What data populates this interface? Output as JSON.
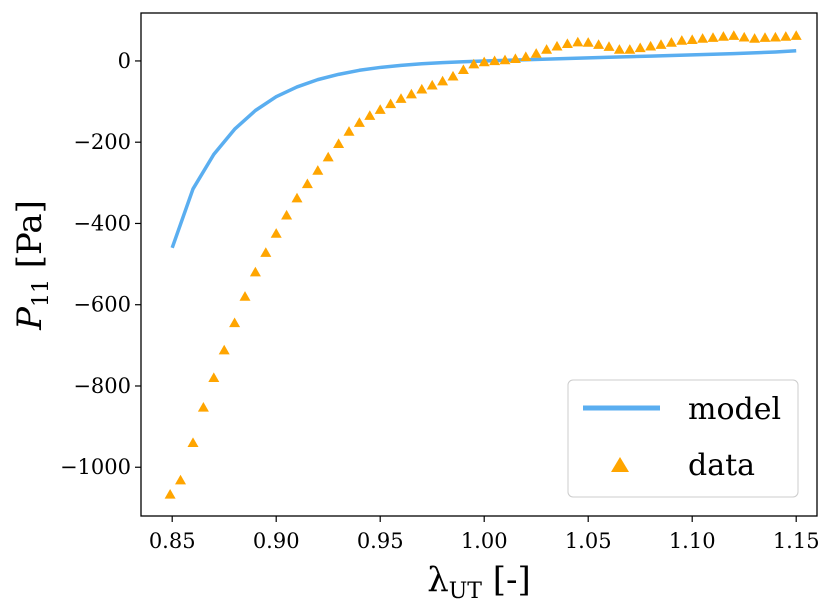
{
  "chart_data": {
    "type": "line",
    "xlabel": {
      "base": "λ",
      "sub": "UT",
      "suffix": " [-]"
    },
    "ylabel": {
      "base": "P",
      "sub": "11",
      "suffix": " [Pa]"
    },
    "xlim": [
      0.835,
      1.16
    ],
    "ylim": [
      -1120,
      118
    ],
    "x_ticks": [
      0.85,
      0.9,
      0.95,
      1.0,
      1.05,
      1.1,
      1.15
    ],
    "x_tick_labels": [
      "0.85",
      "0.90",
      "0.95",
      "1.00",
      "1.05",
      "1.10",
      "1.15"
    ],
    "y_ticks": [
      0,
      -200,
      -400,
      -600,
      -800,
      -1000
    ],
    "y_tick_labels": [
      "0",
      "−200",
      "−400",
      "−600",
      "−800",
      "−1000"
    ],
    "grid": false,
    "legend_position": "bottom-right",
    "series": [
      {
        "name": "model",
        "kind": "line",
        "color": "#5aaef0",
        "x": [
          0.85,
          0.86,
          0.87,
          0.88,
          0.89,
          0.9,
          0.91,
          0.92,
          0.93,
          0.94,
          0.95,
          0.96,
          0.97,
          0.98,
          0.99,
          1.0,
          1.02,
          1.04,
          1.06,
          1.08,
          1.1,
          1.12,
          1.14,
          1.15
        ],
        "y": [
          -460,
          -315,
          -230,
          -168,
          -122,
          -88,
          -64,
          -46,
          -33,
          -23,
          -16,
          -11,
          -7,
          -4,
          -2,
          0,
          3,
          6,
          9,
          12,
          15,
          18,
          22,
          25
        ]
      },
      {
        "name": "data",
        "kind": "scatter",
        "marker": "triangle",
        "color": "#ffa500",
        "x": [
          0.849,
          0.854,
          0.86,
          0.865,
          0.87,
          0.875,
          0.88,
          0.885,
          0.89,
          0.895,
          0.9,
          0.905,
          0.91,
          0.915,
          0.92,
          0.925,
          0.93,
          0.935,
          0.94,
          0.945,
          0.95,
          0.955,
          0.96,
          0.965,
          0.97,
          0.975,
          0.98,
          0.985,
          0.99,
          0.995,
          1.0,
          1.005,
          1.01,
          1.015,
          1.02,
          1.025,
          1.03,
          1.035,
          1.04,
          1.045,
          1.05,
          1.055,
          1.06,
          1.065,
          1.07,
          1.075,
          1.08,
          1.085,
          1.09,
          1.095,
          1.1,
          1.105,
          1.11,
          1.115,
          1.12,
          1.125,
          1.13,
          1.135,
          1.14,
          1.145,
          1.15
        ],
        "y": [
          -1067,
          -1032,
          -940,
          -853,
          -780,
          -712,
          -645,
          -580,
          -520,
          -472,
          -425,
          -380,
          -338,
          -303,
          -270,
          -237,
          -204,
          -174,
          -152,
          -135,
          -120,
          -106,
          -93,
          -82,
          -70,
          -60,
          -50,
          -38,
          -22,
          -8,
          -3,
          0,
          2,
          5,
          10,
          18,
          28,
          36,
          42,
          46,
          45,
          40,
          35,
          28,
          28,
          32,
          36,
          40,
          45,
          50,
          52,
          55,
          57,
          60,
          62,
          58,
          55,
          57,
          58,
          60,
          62
        ]
      }
    ]
  }
}
